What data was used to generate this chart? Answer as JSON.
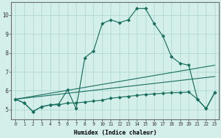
{
  "xlabel": "Humidex (Indice chaleur)",
  "bg_color": "#d4eeea",
  "grid_color": "#a8d4ce",
  "line_color": "#1a7060",
  "xlim": [
    -0.5,
    23.5
  ],
  "ylim": [
    4.5,
    10.7
  ],
  "yticks": [
    5,
    6,
    7,
    8,
    9,
    10
  ],
  "xticks": [
    0,
    1,
    2,
    3,
    4,
    5,
    6,
    7,
    8,
    9,
    10,
    11,
    12,
    13,
    14,
    15,
    16,
    17,
    18,
    19,
    20,
    21,
    22,
    23
  ],
  "curve1_x": [
    0,
    1,
    2,
    3,
    4,
    5,
    6,
    7,
    8,
    9,
    10,
    11,
    12,
    13,
    14,
    15,
    16,
    17,
    18,
    19,
    20,
    21,
    22,
    23
  ],
  "curve1_y": [
    5.55,
    5.35,
    4.9,
    5.15,
    5.25,
    5.3,
    6.05,
    5.05,
    7.75,
    8.1,
    9.55,
    9.75,
    9.6,
    9.75,
    10.35,
    10.35,
    9.55,
    8.9,
    7.8,
    7.45,
    7.35,
    5.55,
    5.05,
    5.9
  ],
  "curve2_x": [
    0,
    1,
    2,
    3,
    4,
    5,
    6,
    7,
    8,
    9,
    10,
    11,
    12,
    13,
    14,
    15,
    16,
    17,
    18,
    19,
    20,
    21,
    22,
    23
  ],
  "curve2_y": [
    5.55,
    5.35,
    4.9,
    5.15,
    5.25,
    5.25,
    5.35,
    5.35,
    5.4,
    5.45,
    5.5,
    5.6,
    5.65,
    5.7,
    5.75,
    5.8,
    5.83,
    5.86,
    5.89,
    5.9,
    5.93,
    5.55,
    5.05,
    5.9
  ],
  "line3_x": [
    0,
    23
  ],
  "line3_y": [
    5.55,
    7.35
  ],
  "line4_x": [
    0,
    23
  ],
  "line4_y": [
    5.55,
    6.75
  ]
}
